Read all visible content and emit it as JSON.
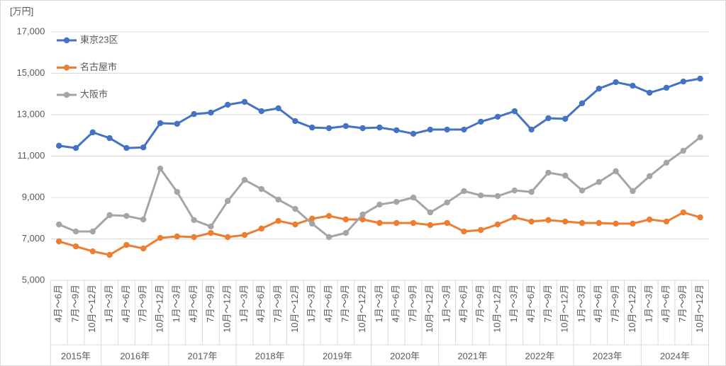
{
  "chart_data": {
    "type": "line",
    "y_unit": "[万円]",
    "categories": [
      [
        "2015年",
        "4月～6月"
      ],
      [
        null,
        "7月～9月"
      ],
      [
        null,
        "10月～12月"
      ],
      [
        "2016年",
        "1月～3月"
      ],
      [
        null,
        "4月～6月"
      ],
      [
        null,
        "7月～9月"
      ],
      [
        null,
        "10月～12月"
      ],
      [
        "2017年",
        "1月～3月"
      ],
      [
        null,
        "4月～6月"
      ],
      [
        null,
        "7月～9月"
      ],
      [
        null,
        "10月～12月"
      ],
      [
        "2018年",
        "1月～3月"
      ],
      [
        null,
        "4月～6月"
      ],
      [
        null,
        "7月～9月"
      ],
      [
        null,
        "10月～12月"
      ],
      [
        "2019年",
        "1月～3月"
      ],
      [
        null,
        "4月～6月"
      ],
      [
        null,
        "7月～9月"
      ],
      [
        null,
        "10月～12月"
      ],
      [
        "2020年",
        "1月～3月"
      ],
      [
        null,
        "4月～6月"
      ],
      [
        null,
        "7月～9月"
      ],
      [
        null,
        "10月～12月"
      ],
      [
        "2021年",
        "1月～3月"
      ],
      [
        null,
        "4月～6月"
      ],
      [
        null,
        "7月～9月"
      ],
      [
        null,
        "10月～12月"
      ],
      [
        "2022年",
        "1月～3月"
      ],
      [
        null,
        "4月～6月"
      ],
      [
        null,
        "7月～9月"
      ],
      [
        null,
        "10月～12月"
      ],
      [
        "2023年",
        "1月～3月"
      ],
      [
        null,
        "4月～6月"
      ],
      [
        null,
        "7月～9月"
      ],
      [
        null,
        "10月～12月"
      ],
      [
        "2024年",
        "1月～3月"
      ],
      [
        null,
        "4月～6月"
      ],
      [
        null,
        "7月～9月"
      ],
      [
        null,
        "10月～12月"
      ]
    ],
    "series": [
      {
        "name": "東京23区",
        "color": "#4472c4",
        "values": [
          11500,
          11390,
          12150,
          11870,
          11390,
          11420,
          12590,
          12560,
          13030,
          13100,
          13480,
          13620,
          13170,
          13310,
          12690,
          12380,
          12350,
          12450,
          12350,
          12380,
          12250,
          12080,
          12280,
          12280,
          12280,
          12660,
          12900,
          13170,
          12280,
          12830,
          12800,
          13550,
          14260,
          14570,
          14400,
          14060,
          14300,
          14600,
          14740
        ]
      },
      {
        "name": "名古屋市",
        "color": "#ed7d31",
        "values": [
          6880,
          6640,
          6400,
          6230,
          6710,
          6540,
          7050,
          7120,
          7090,
          7290,
          7090,
          7190,
          7500,
          7870,
          7700,
          7980,
          8110,
          7940,
          7940,
          7770,
          7770,
          7770,
          7670,
          7770,
          7360,
          7430,
          7700,
          8040,
          7840,
          7910,
          7840,
          7770,
          7770,
          7740,
          7740,
          7940,
          7840,
          8280,
          8040
        ]
      },
      {
        "name": "大阪市",
        "color": "#a5a5a5",
        "values": [
          7700,
          7360,
          7360,
          8150,
          8110,
          7940,
          10400,
          9270,
          7910,
          7600,
          8830,
          9850,
          9410,
          8900,
          8450,
          7740,
          7090,
          7290,
          8180,
          8660,
          8790,
          9000,
          8280,
          8760,
          9310,
          9100,
          9070,
          9340,
          9270,
          10200,
          10060,
          9340,
          9750,
          10270,
          9310,
          10030,
          10680,
          11260,
          11910
        ]
      }
    ],
    "ylim": [
      5000,
      17000
    ],
    "yticks": [
      {
        "value": 5000,
        "label": "5,000"
      },
      {
        "value": 7000,
        "label": "7,000"
      },
      {
        "value": 9000,
        "label": "9,000"
      },
      {
        "value": 11000,
        "label": "11,000"
      },
      {
        "value": 13000,
        "label": "13,000"
      },
      {
        "value": 15000,
        "label": "15,000"
      },
      {
        "value": 17000,
        "label": "17,000"
      }
    ],
    "grid": true,
    "legend": "upper left"
  }
}
